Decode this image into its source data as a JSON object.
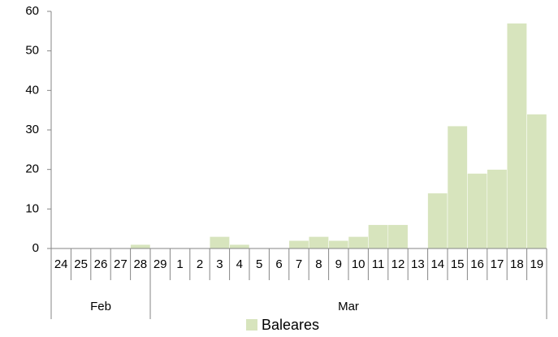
{
  "chart_data": {
    "type": "bar",
    "groups": [
      {
        "name": "Feb",
        "categories": [
          "24",
          "25",
          "26",
          "27",
          "28"
        ]
      },
      {
        "name": "Mar",
        "categories": [
          "29",
          "1",
          "2",
          "3",
          "4",
          "5",
          "6",
          "7",
          "8",
          "9",
          "10",
          "11",
          "12",
          "13",
          "14",
          "15",
          "16",
          "17",
          "18",
          "19"
        ]
      }
    ],
    "series": [
      {
        "name": "Baleares",
        "color": "#d7e4bd",
        "values": [
          0,
          0,
          0,
          0,
          1,
          0,
          0,
          0,
          3,
          1,
          0,
          0,
          2,
          3,
          2,
          3,
          6,
          6,
          0,
          14,
          31,
          19,
          20,
          57,
          34
        ]
      }
    ],
    "ylim": [
      0,
      60
    ],
    "yticks": [
      0,
      10,
      20,
      30,
      40,
      50,
      60
    ],
    "legend": "bottom"
  }
}
